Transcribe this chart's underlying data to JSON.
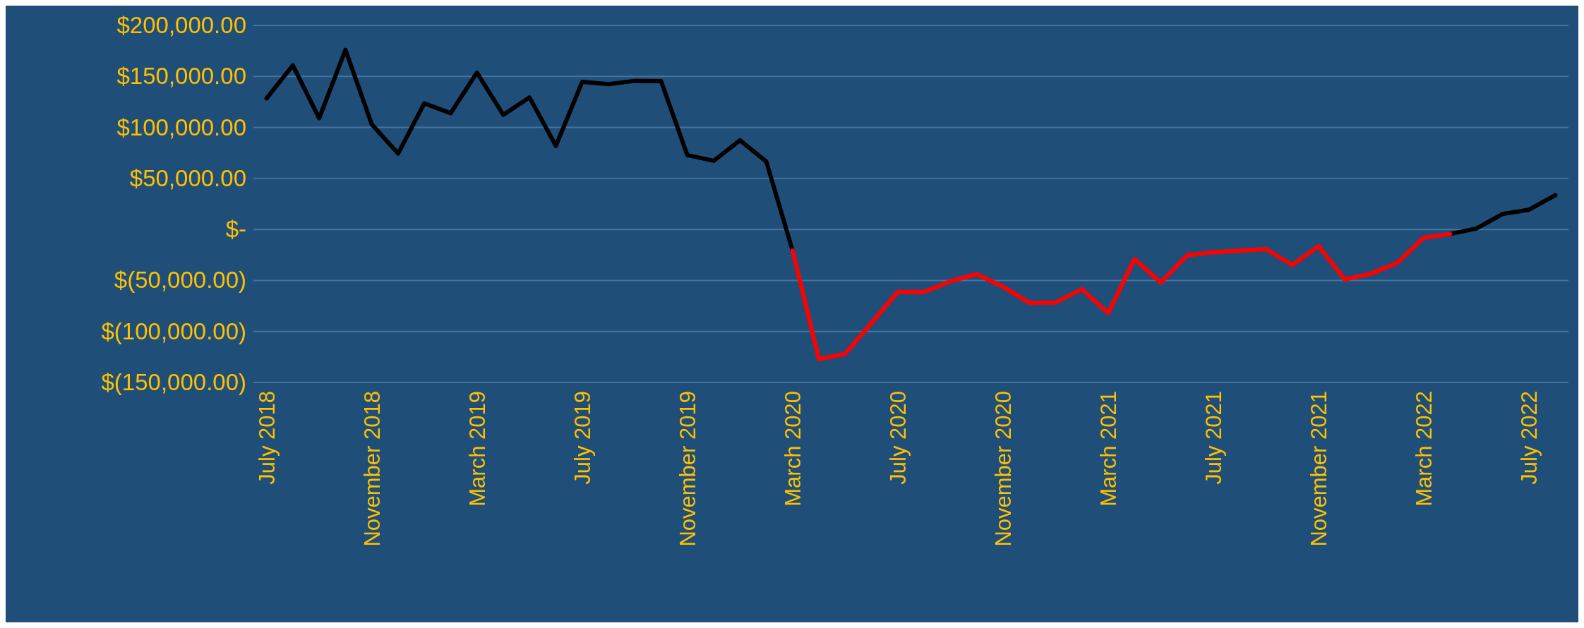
{
  "chart_data": {
    "type": "line",
    "categories": [
      "July 2018",
      null,
      null,
      null,
      "November 2018",
      null,
      null,
      null,
      "March 2019",
      null,
      null,
      null,
      "July 2019",
      null,
      null,
      null,
      "November 2019",
      null,
      null,
      null,
      "March 2020",
      null,
      null,
      null,
      "July 2020",
      null,
      null,
      null,
      "November 2020",
      null,
      null,
      null,
      "March 2021",
      null,
      null,
      null,
      "July 2021",
      null,
      null,
      null,
      "November 2021",
      null,
      null,
      null,
      "March 2022",
      null,
      null,
      null,
      "July 2022",
      null
    ],
    "series": [
      {
        "color": "#000000",
        "values": [
          128500,
          160800,
          109000,
          176000,
          103000,
          74400,
          123600,
          114000,
          153700,
          112300,
          129400,
          81900,
          144600,
          142400,
          145600,
          145300,
          72800,
          67300,
          87300,
          66600,
          -20700,
          null,
          null,
          null,
          null,
          null,
          null,
          null,
          null,
          null,
          null,
          null,
          null,
          null,
          null,
          null,
          null,
          null,
          null,
          null,
          null,
          null,
          null,
          null,
          null,
          -4500,
          900,
          15200,
          19300,
          33600
        ]
      },
      {
        "color": "#ff0000",
        "values": [
          null,
          null,
          null,
          null,
          null,
          null,
          null,
          null,
          null,
          null,
          null,
          null,
          null,
          null,
          null,
          null,
          null,
          null,
          null,
          null,
          -20700,
          -127200,
          -121900,
          -91700,
          -61300,
          -61300,
          -50900,
          -43800,
          -56200,
          -71900,
          -71600,
          -58600,
          -82000,
          -29000,
          -52100,
          -25300,
          -22300,
          -20800,
          -19300,
          -34800,
          -16400,
          -49100,
          -43200,
          -32700,
          -8000,
          -4500,
          null,
          null,
          null,
          null
        ]
      }
    ],
    "ylim": [
      -150000,
      200000
    ],
    "yticks": [
      {
        "value": -150000,
        "label": "$(150,000.00)"
      },
      {
        "value": -100000,
        "label": "$(100,000.00)"
      },
      {
        "value": -50000,
        "label": "$(50,000.00)"
      },
      {
        "value": 0,
        "label": "$-"
      },
      {
        "value": 50000,
        "label": "$50,000.00"
      },
      {
        "value": 100000,
        "label": "$100,000.00"
      },
      {
        "value": 150000,
        "label": "$150,000.00"
      },
      {
        "value": 200000,
        "label": "$200,000.00"
      }
    ],
    "grid": "y",
    "legend": false
  }
}
